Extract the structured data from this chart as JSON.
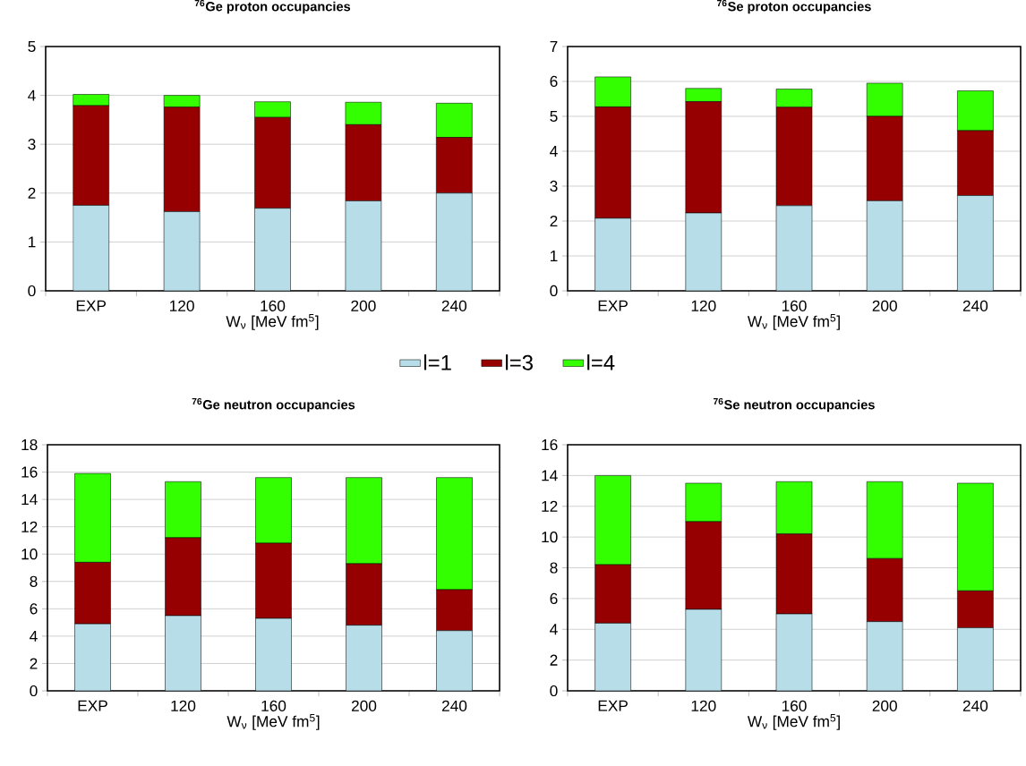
{
  "chart_data": [
    {
      "type": "bar",
      "stacked": true,
      "title": "$^{76}$Ge proton occupancies",
      "xlabel": "W$_{ν}$ [MeV fm$^{5}$]",
      "categories": [
        "EXP",
        "120",
        "160",
        "200",
        "240"
      ],
      "ylim": [
        0,
        5
      ],
      "yticks": [
        0,
        1,
        2,
        3,
        4,
        5
      ],
      "grid": "y",
      "legend": "bottom",
      "series": [
        {
          "name": "l=1",
          "color": "#b7dde8",
          "values": [
            1.75,
            1.62,
            1.69,
            1.84,
            2.0
          ]
        },
        {
          "name": "l=3",
          "color": "#960000",
          "values": [
            2.04,
            2.14,
            1.86,
            1.56,
            1.14
          ]
        },
        {
          "name": "l=4",
          "color": "#33ff00",
          "values": [
            0.23,
            0.24,
            0.32,
            0.46,
            0.7
          ]
        }
      ]
    },
    {
      "type": "bar",
      "stacked": true,
      "title": "$^{76}$Se proton occupancies",
      "xlabel": "W$_{ν}$ [MeV fm$^{5}$]",
      "categories": [
        "EXP",
        "120",
        "160",
        "200",
        "240"
      ],
      "ylim": [
        0,
        7
      ],
      "yticks": [
        0,
        1,
        2,
        3,
        4,
        5,
        6,
        7
      ],
      "grid": "y",
      "series": [
        {
          "color": "#b7dde8",
          "values": [
            2.08,
            2.23,
            2.44,
            2.58,
            2.73
          ]
        },
        {
          "color": "#960000",
          "values": [
            3.19,
            3.19,
            2.82,
            2.42,
            1.86
          ]
        },
        {
          "color": "#33ff00",
          "values": [
            0.86,
            0.38,
            0.52,
            0.95,
            1.14
          ]
        }
      ]
    },
    {
      "type": "bar",
      "stacked": true,
      "title": "$^{76}$Ge neutron occupancies",
      "xlabel": "W$_{ν}$ [MeV fm$^{5}$]",
      "categories": [
        "EXP",
        "120",
        "160",
        "200",
        "240"
      ],
      "ylim": [
        0,
        18
      ],
      "yticks": [
        0,
        2,
        4,
        6,
        8,
        10,
        12,
        14,
        16,
        18
      ],
      "grid": "y",
      "series": [
        {
          "color": "#b7dde8",
          "values": [
            4.9,
            5.5,
            5.3,
            4.8,
            4.4
          ]
        },
        {
          "color": "#960000",
          "values": [
            4.5,
            5.7,
            5.5,
            4.5,
            3.0
          ]
        },
        {
          "color": "#33ff00",
          "values": [
            6.5,
            4.1,
            4.8,
            6.3,
            8.2
          ]
        }
      ]
    },
    {
      "type": "bar",
      "stacked": true,
      "title": "$^{76}$Se neutron occupancies",
      "xlabel": "W$_{ν}$ [MeV fm$^{5}$]",
      "categories": [
        "EXP",
        "120",
        "160",
        "200",
        "240"
      ],
      "ylim": [
        0,
        16
      ],
      "yticks": [
        0,
        2,
        4,
        6,
        8,
        10,
        12,
        14,
        16
      ],
      "grid": "y",
      "series": [
        {
          "color": "#b7dde8",
          "values": [
            4.4,
            5.3,
            5.0,
            4.5,
            4.1
          ]
        },
        {
          "color": "#960000",
          "values": [
            3.8,
            5.7,
            5.2,
            4.1,
            2.4
          ]
        },
        {
          "color": "#33ff00",
          "values": [
            5.8,
            2.5,
            3.4,
            5.0,
            7.0
          ]
        }
      ]
    }
  ]
}
